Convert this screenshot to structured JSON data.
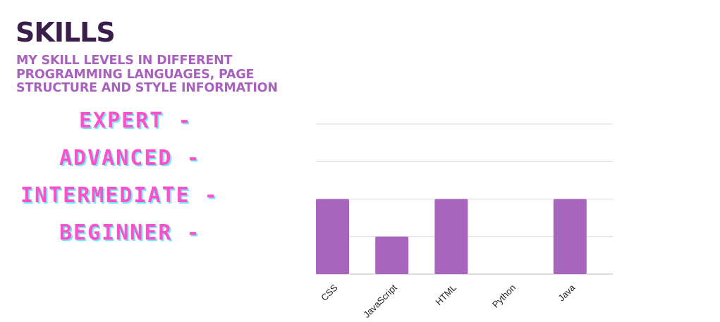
{
  "header": {
    "title": "SKILLS",
    "subtitle": "MY SKILL LEVELS IN DIFFERENT PROGRAMMING LANGUAGES, PAGE STRUCTURE AND STYLE INFORMATION"
  },
  "levels": [
    "EXPERT -",
    "ADVANCED -",
    "INTERMEDIATE -",
    "BEGINNER -"
  ],
  "colors": {
    "title": "#3a1d4a",
    "subtitle": "#a862bd",
    "level_text": "#ff4fcb",
    "level_shadow": "#74ecf5",
    "bar": "#a865bd",
    "grid": "#d9d9d9"
  },
  "chart_data": {
    "type": "bar",
    "categories": [
      "CSS",
      "JavaScript",
      "HTML",
      "Python",
      "Java"
    ],
    "values": [
      2,
      1,
      2,
      0,
      2
    ],
    "ylim": [
      0,
      4
    ],
    "grid": true,
    "xtick_rotation": -45
  }
}
